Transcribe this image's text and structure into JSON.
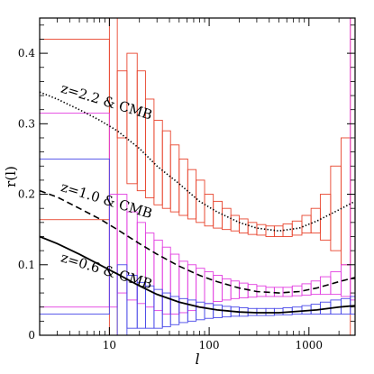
{
  "chart_data": {
    "type": "line",
    "title": "",
    "xlabel": "l",
    "ylabel": "r(l)",
    "xscale": "log",
    "xlim": [
      2,
      2900
    ],
    "ylim": [
      0,
      0.45
    ],
    "grid": false,
    "x_ticks": [
      {
        "value": 10,
        "label": "10"
      },
      {
        "value": 100,
        "label": "100"
      },
      {
        "value": 1000,
        "label": "1000"
      }
    ],
    "y_ticks": [
      {
        "value": 0,
        "label": "0"
      },
      {
        "value": 0.1,
        "label": "0.1"
      },
      {
        "value": 0.2,
        "label": "0.2"
      },
      {
        "value": 0.3,
        "label": "0.3"
      },
      {
        "value": 0.4,
        "label": "0.4"
      }
    ],
    "annotations": [
      {
        "text": "z=2.2 & CMB",
        "x": 3.2,
        "y": 0.345,
        "angle": 17
      },
      {
        "text": "z=1.0 & CMB",
        "x": 3.2,
        "y": 0.205,
        "angle": 17
      },
      {
        "text": "z=0.6 & CMB",
        "x": 3.2,
        "y": 0.105,
        "angle": 17
      }
    ],
    "series": [
      {
        "label": "z=2.2 & CMB",
        "line_style": "dotted",
        "color": "#000000",
        "x": [
          2,
          3,
          5,
          8,
          12,
          20,
          30,
          50,
          80,
          120,
          200,
          300,
          500,
          800,
          1200,
          2000,
          2900
        ],
        "y": [
          0.345,
          0.335,
          0.32,
          0.305,
          0.29,
          0.265,
          0.24,
          0.215,
          0.19,
          0.175,
          0.16,
          0.152,
          0.148,
          0.152,
          0.162,
          0.178,
          0.19
        ]
      },
      {
        "label": "z=1.0 & CMB",
        "line_style": "dashed",
        "color": "#000000",
        "x": [
          2,
          3,
          5,
          8,
          12,
          20,
          30,
          50,
          80,
          120,
          200,
          300,
          500,
          800,
          1200,
          2000,
          2900
        ],
        "y": [
          0.205,
          0.196,
          0.18,
          0.165,
          0.15,
          0.13,
          0.115,
          0.098,
          0.085,
          0.076,
          0.067,
          0.062,
          0.06,
          0.062,
          0.067,
          0.076,
          0.082
        ]
      },
      {
        "label": "z=0.6 & CMB",
        "line_style": "solid",
        "color": "#000000",
        "x": [
          2,
          3,
          5,
          8,
          12,
          20,
          30,
          50,
          80,
          120,
          200,
          300,
          500,
          800,
          1200,
          2000,
          2900
        ],
        "y": [
          0.14,
          0.13,
          0.115,
          0.1,
          0.087,
          0.07,
          0.058,
          0.047,
          0.04,
          0.036,
          0.033,
          0.032,
          0.032,
          0.034,
          0.036,
          0.04,
          0.042
        ]
      }
    ],
    "error_boxes": [
      {
        "name": "z=2.2 error boxes",
        "color": "#e8452e",
        "bins": [
          [
            2,
            10,
            0.164,
            0.42
          ],
          [
            10,
            12,
            0.0,
            0.45
          ],
          [
            12,
            15,
            0.28,
            0.375
          ],
          [
            15,
            19,
            0.215,
            0.4
          ],
          [
            19,
            23,
            0.205,
            0.375
          ],
          [
            23,
            28,
            0.195,
            0.335
          ],
          [
            28,
            34,
            0.185,
            0.305
          ],
          [
            34,
            41,
            0.18,
            0.29
          ],
          [
            41,
            50,
            0.175,
            0.27
          ],
          [
            50,
            61,
            0.17,
            0.25
          ],
          [
            61,
            74,
            0.165,
            0.235
          ],
          [
            74,
            90,
            0.16,
            0.22
          ],
          [
            90,
            110,
            0.155,
            0.2
          ],
          [
            110,
            135,
            0.152,
            0.19
          ],
          [
            135,
            165,
            0.15,
            0.18
          ],
          [
            165,
            200,
            0.148,
            0.17
          ],
          [
            200,
            245,
            0.145,
            0.165
          ],
          [
            245,
            300,
            0.143,
            0.16
          ],
          [
            300,
            370,
            0.142,
            0.157
          ],
          [
            370,
            450,
            0.14,
            0.155
          ],
          [
            450,
            550,
            0.14,
            0.155
          ],
          [
            550,
            680,
            0.14,
            0.158
          ],
          [
            680,
            850,
            0.142,
            0.162
          ],
          [
            850,
            1050,
            0.145,
            0.17
          ],
          [
            1050,
            1300,
            0.145,
            0.18
          ],
          [
            1300,
            1650,
            0.135,
            0.2
          ],
          [
            1650,
            2100,
            0.12,
            0.24
          ],
          [
            2100,
            2600,
            0.1,
            0.28
          ],
          [
            2600,
            2900,
            0.0,
            0.45
          ]
        ]
      },
      {
        "name": "z=1.0 error boxes",
        "color": "#e23ee0",
        "bins": [
          [
            2,
            10,
            0.04,
            0.315
          ],
          [
            10,
            12,
            0.04,
            0.2
          ],
          [
            12,
            15,
            0.06,
            0.2
          ],
          [
            15,
            19,
            0.05,
            0.175
          ],
          [
            19,
            23,
            0.045,
            0.16
          ],
          [
            23,
            28,
            0.04,
            0.145
          ],
          [
            28,
            34,
            0.035,
            0.135
          ],
          [
            34,
            41,
            0.03,
            0.125
          ],
          [
            41,
            50,
            0.03,
            0.115
          ],
          [
            50,
            61,
            0.032,
            0.105
          ],
          [
            61,
            74,
            0.035,
            0.1
          ],
          [
            74,
            90,
            0.04,
            0.095
          ],
          [
            90,
            110,
            0.045,
            0.09
          ],
          [
            110,
            135,
            0.048,
            0.085
          ],
          [
            135,
            165,
            0.05,
            0.08
          ],
          [
            165,
            200,
            0.052,
            0.077
          ],
          [
            200,
            245,
            0.053,
            0.074
          ],
          [
            245,
            300,
            0.054,
            0.072
          ],
          [
            300,
            370,
            0.055,
            0.07
          ],
          [
            370,
            450,
            0.055,
            0.068
          ],
          [
            450,
            550,
            0.055,
            0.068
          ],
          [
            550,
            680,
            0.055,
            0.068
          ],
          [
            680,
            850,
            0.056,
            0.07
          ],
          [
            850,
            1050,
            0.057,
            0.073
          ],
          [
            1050,
            1300,
            0.058,
            0.077
          ],
          [
            1300,
            1650,
            0.058,
            0.083
          ],
          [
            1650,
            2100,
            0.058,
            0.09
          ],
          [
            2100,
            2600,
            0.055,
            0.1
          ],
          [
            2600,
            2900,
            0.05,
            0.45
          ]
        ]
      },
      {
        "name": "z=0.6 error boxes",
        "color": "#4a4ae8",
        "bins": [
          [
            2,
            10,
            0.03,
            0.25
          ],
          [
            10,
            12,
            0.0,
            0.0
          ],
          [
            12,
            15,
            0.0,
            0.1
          ],
          [
            15,
            19,
            0.01,
            0.085
          ],
          [
            19,
            23,
            0.01,
            0.075
          ],
          [
            23,
            28,
            0.01,
            0.07
          ],
          [
            28,
            34,
            0.01,
            0.065
          ],
          [
            34,
            41,
            0.012,
            0.06
          ],
          [
            41,
            50,
            0.015,
            0.055
          ],
          [
            50,
            61,
            0.018,
            0.052
          ],
          [
            61,
            74,
            0.02,
            0.05
          ],
          [
            74,
            90,
            0.022,
            0.047
          ],
          [
            90,
            110,
            0.024,
            0.045
          ],
          [
            110,
            135,
            0.025,
            0.043
          ],
          [
            135,
            165,
            0.026,
            0.041
          ],
          [
            165,
            200,
            0.027,
            0.04
          ],
          [
            200,
            245,
            0.027,
            0.039
          ],
          [
            245,
            300,
            0.028,
            0.038
          ],
          [
            300,
            370,
            0.028,
            0.038
          ],
          [
            370,
            450,
            0.028,
            0.038
          ],
          [
            450,
            550,
            0.029,
            0.038
          ],
          [
            550,
            680,
            0.029,
            0.039
          ],
          [
            680,
            850,
            0.03,
            0.04
          ],
          [
            850,
            1050,
            0.03,
            0.042
          ],
          [
            1050,
            1300,
            0.03,
            0.044
          ],
          [
            1300,
            1650,
            0.03,
            0.047
          ],
          [
            1650,
            2100,
            0.03,
            0.05
          ],
          [
            2100,
            2600,
            0.03,
            0.052
          ],
          [
            2600,
            2900,
            0.03,
            0.055
          ]
        ]
      }
    ]
  }
}
